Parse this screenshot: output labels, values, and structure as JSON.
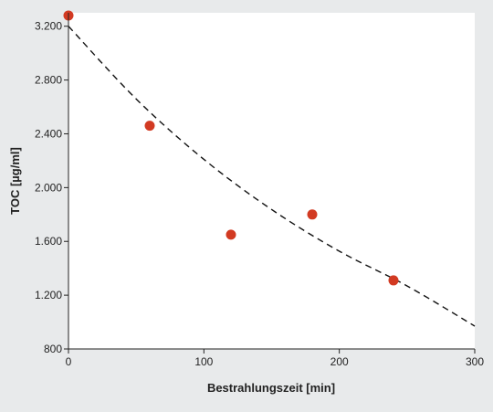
{
  "chart_data": {
    "type": "scatter",
    "title": "",
    "xlabel": "Bestrahlungszeit [min]",
    "ylabel": "TOC [µg/ml]",
    "xlim": [
      0,
      300
    ],
    "ylim": [
      800,
      3300
    ],
    "xticks": [
      0,
      100,
      200,
      300
    ],
    "xtick_labels": [
      "0",
      "100",
      "200",
      "300"
    ],
    "yticks": [
      800,
      1200,
      1600,
      2000,
      2400,
      2800,
      3200
    ],
    "ytick_labels": [
      "800",
      "1.200",
      "1.600",
      "2.000",
      "2.400",
      "2.800",
      "3.200"
    ],
    "grid": false,
    "series": [
      {
        "style": "markers",
        "color": "#d23a22",
        "x": [
          0,
          60,
          120,
          180,
          240
        ],
        "y": [
          3280,
          2460,
          1650,
          1800,
          1310
        ]
      },
      {
        "style": "dashed-line",
        "color": "#111111",
        "fit": "exponential",
        "x": [
          0,
          50,
          100,
          150,
          200,
          250,
          300
        ],
        "y": [
          3200,
          2659,
          2210,
          1837,
          1527,
          1269,
          970
        ]
      }
    ]
  }
}
